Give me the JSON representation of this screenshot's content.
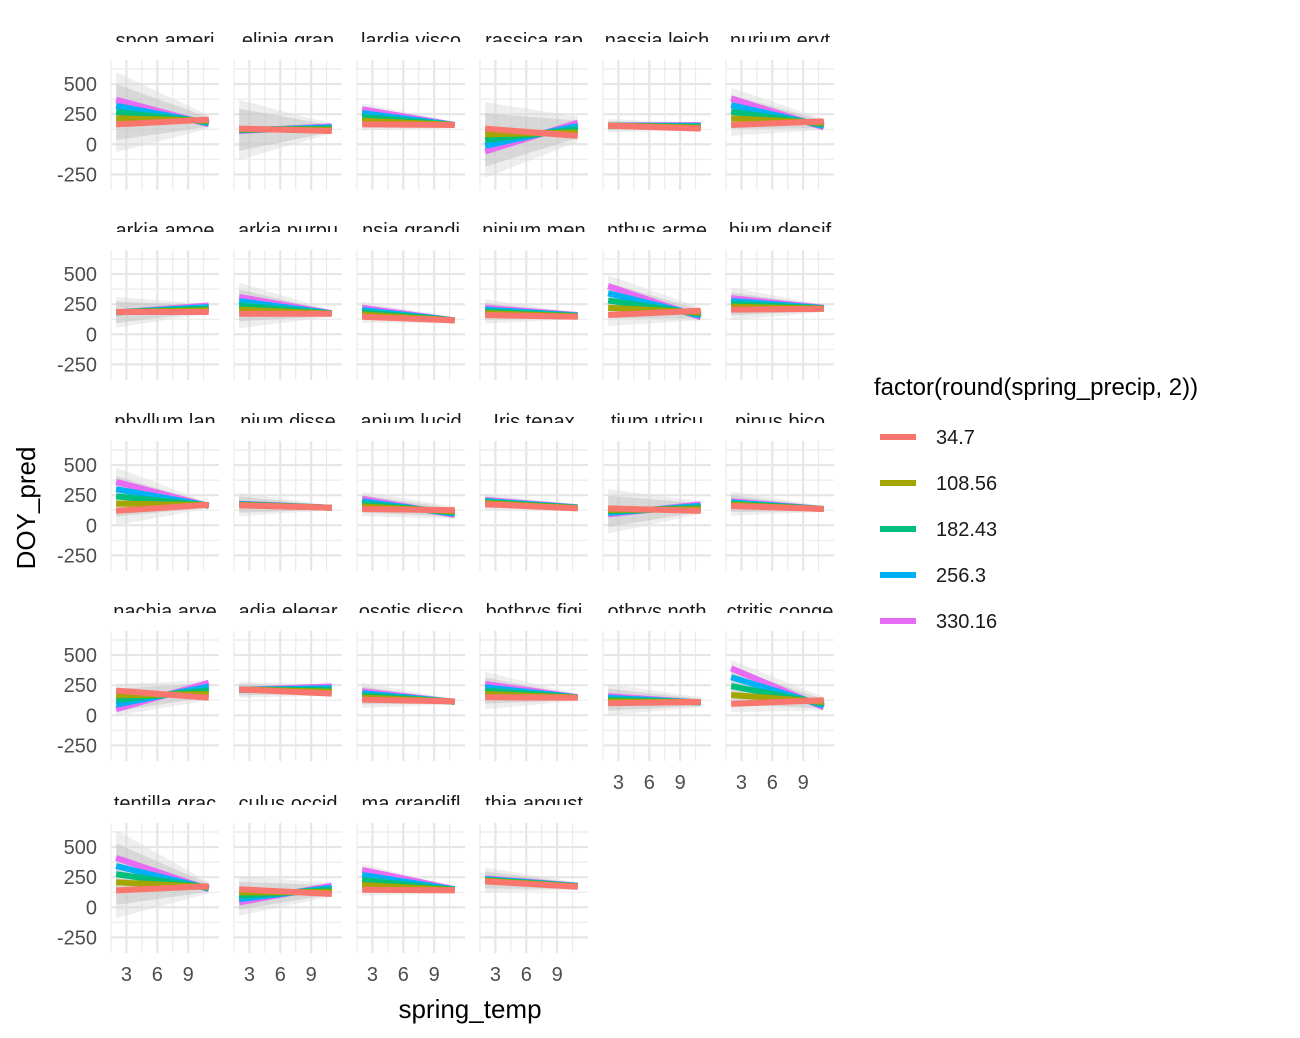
{
  "chart_data": {
    "type": "line",
    "xlabel": "spring_temp",
    "ylabel": "DOY_pred",
    "x_ticks": [
      3,
      6,
      9
    ],
    "y_ticks": [
      -250,
      0,
      250,
      500
    ],
    "xlim": [
      1.5,
      12.0
    ],
    "ylim": [
      -380,
      700
    ],
    "legend": {
      "title": "factor(round(spring_precip, 2))",
      "position": "right",
      "entries": [
        {
          "label": "34.7",
          "color": "#F8766D"
        },
        {
          "label": "108.56",
          "color": "#A3A500"
        },
        {
          "label": "182.43",
          "color": "#00BF7D"
        },
        {
          "label": "256.3",
          "color": "#00B0F6"
        },
        {
          "label": "330.16",
          "color": "#E76BF3"
        }
      ]
    },
    "x_range": [
      2.0,
      11.0
    ],
    "panels": [
      {
        "title": "spon ameri",
        "red": [
          165,
          205
        ],
        "magenta": [
          370,
          165
        ],
        "band_l": 600,
        "band_r": 240
      },
      {
        "title": "elinia gran",
        "red": [
          130,
          110
        ],
        "magenta": [
          110,
          150
        ],
        "band_l": 370,
        "band_r": 170
      },
      {
        "title": "lardia visco",
        "red": [
          165,
          160
        ],
        "magenta": [
          290,
          160
        ],
        "band_l": 340,
        "band_r": 185
      },
      {
        "title": "rassica rap",
        "red": [
          130,
          70
        ],
        "magenta": [
          -60,
          180
        ],
        "band_l": 350,
        "band_r": 230
      },
      {
        "title": "nassia leich",
        "red": [
          155,
          130
        ],
        "magenta": [
          155,
          160
        ],
        "band_l": 210,
        "band_r": 175
      },
      {
        "title": "nurium eryt",
        "red": [
          160,
          190
        ],
        "magenta": [
          380,
          140
        ],
        "band_l": 470,
        "band_r": 210
      },
      {
        "title": "arkia amoe",
        "red": [
          185,
          185
        ],
        "magenta": [
          180,
          240
        ],
        "band_l": 310,
        "band_r": 250
      },
      {
        "title": "arkia purpu",
        "red": [
          170,
          170
        ],
        "magenta": [
          310,
          175
        ],
        "band_l": 430,
        "band_r": 200
      },
      {
        "title": "nsia grandi",
        "red": [
          145,
          115
        ],
        "magenta": [
          220,
          115
        ],
        "band_l": 270,
        "band_r": 140
      },
      {
        "title": "ninium men",
        "red": [
          160,
          145
        ],
        "magenta": [
          220,
          160
        ],
        "band_l": 290,
        "band_r": 180
      },
      {
        "title": "nthus arme",
        "red": [
          160,
          195
        ],
        "magenta": [
          400,
          140
        ],
        "band_l": 490,
        "band_r": 220
      },
      {
        "title": "bium densif",
        "red": [
          205,
          210
        ],
        "magenta": [
          300,
          220
        ],
        "band_l": 390,
        "band_r": 245
      },
      {
        "title": "phyllum lan",
        "red": [
          120,
          170
        ],
        "magenta": [
          360,
          160
        ],
        "band_l": 480,
        "band_r": 190
      },
      {
        "title": "nium disse",
        "red": [
          165,
          145
        ],
        "magenta": [
          180,
          145
        ],
        "band_l": 270,
        "band_r": 165
      },
      {
        "title": "anium lucid",
        "red": [
          135,
          125
        ],
        "magenta": [
          220,
          85
        ],
        "band_l": 280,
        "band_r": 155
      },
      {
        "title": "Iris tenax",
        "red": [
          175,
          140
        ],
        "magenta": [
          210,
          150
        ],
        "band_l": 260,
        "band_r": 170
      },
      {
        "title": "tium utricu",
        "red": [
          140,
          120
        ],
        "magenta": [
          90,
          175
        ],
        "band_l": 300,
        "band_r": 200
      },
      {
        "title": "pinus bico",
        "red": [
          160,
          135
        ],
        "magenta": [
          200,
          135
        ],
        "band_l": 280,
        "band_r": 160
      },
      {
        "title": "nachia arve",
        "red": [
          205,
          145
        ],
        "magenta": [
          50,
          270
        ],
        "band_l": 260,
        "band_r": 290
      },
      {
        "title": "adia elegar",
        "red": [
          215,
          180
        ],
        "magenta": [
          210,
          240
        ],
        "band_l": 280,
        "band_r": 255
      },
      {
        "title": "osotis disco",
        "red": [
          130,
          115
        ],
        "magenta": [
          200,
          110
        ],
        "band_l": 270,
        "band_r": 135
      },
      {
        "title": "bothrys figi",
        "red": [
          150,
          145
        ],
        "magenta": [
          260,
          150
        ],
        "band_l": 360,
        "band_r": 175
      },
      {
        "title": "othrys noth",
        "red": [
          100,
          110
        ],
        "magenta": [
          160,
          105
        ],
        "band_l": 260,
        "band_r": 150
      },
      {
        "title": "ctritis conge",
        "red": [
          95,
          125
        ],
        "magenta": [
          390,
          65
        ],
        "band_l": 460,
        "band_r": 150
      },
      {
        "title": "tentilla grac",
        "red": [
          140,
          175
        ],
        "magenta": [
          410,
          150
        ],
        "band_l": 640,
        "band_r": 210
      },
      {
        "title": "culus occid",
        "red": [
          150,
          110
        ],
        "magenta": [
          40,
          180
        ],
        "band_l": 260,
        "band_r": 200
      },
      {
        "title": "ma grandifl",
        "red": [
          145,
          140
        ],
        "magenta": [
          310,
          150
        ],
        "band_l": 360,
        "band_r": 170
      },
      {
        "title": "thia angust",
        "red": [
          215,
          170
        ],
        "magenta": [
          240,
          180
        ],
        "band_l": 330,
        "band_r": 205
      }
    ]
  }
}
